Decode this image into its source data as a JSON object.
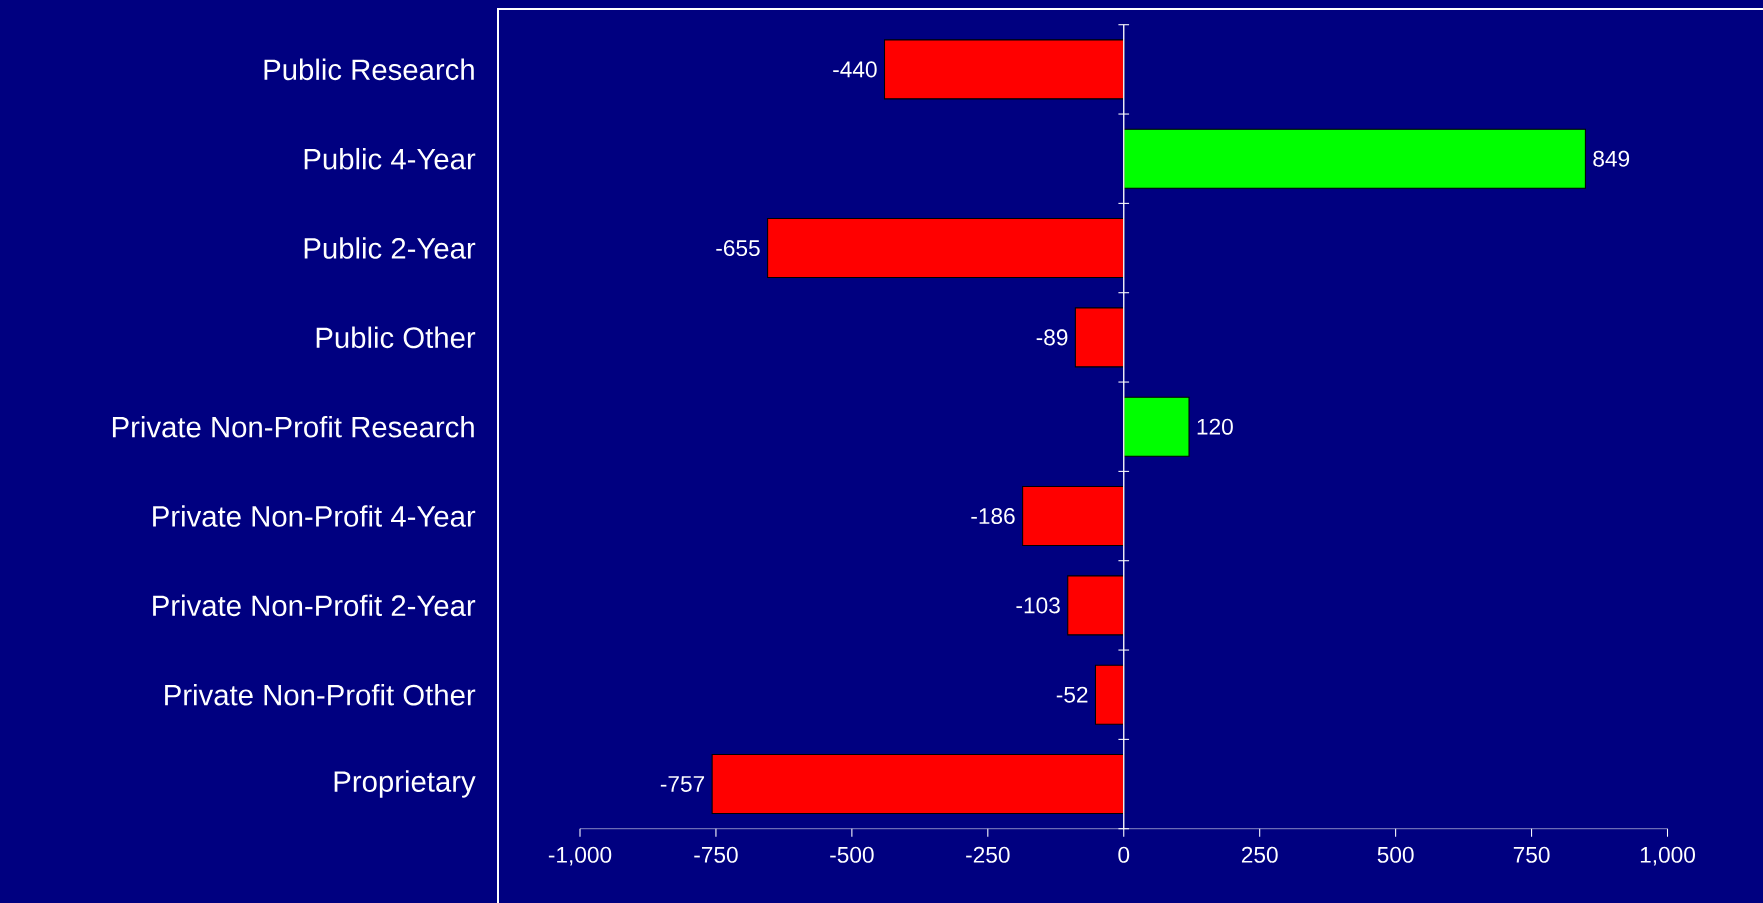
{
  "chart_data": {
    "type": "bar",
    "orientation": "horizontal",
    "categories": [
      "Public Research",
      "Public 4-Year",
      "Public 2-Year",
      "Public Other",
      "Private Non-Profit Research",
      "Private Non-Profit 4-Year",
      "Private Non-Profit 2-Year",
      "Private Non-Profit Other",
      "Proprietary"
    ],
    "values": [
      -440,
      849,
      -655,
      -89,
      120,
      -186,
      -103,
      -52,
      -757
    ],
    "colors": [
      "#ff0000",
      "#00ff00",
      "#ff0000",
      "#ff0000",
      "#00ff00",
      "#ff0000",
      "#ff0000",
      "#ff0000",
      "#ff0000"
    ],
    "data_labels": true,
    "xlim": [
      -1000,
      1000
    ],
    "xticks": [
      {
        "value": -1000,
        "label": "-1,000"
      },
      -750,
      -500,
      -250,
      0,
      250,
      500,
      750,
      {
        "value": 1000,
        "label": "1,000"
      }
    ]
  }
}
